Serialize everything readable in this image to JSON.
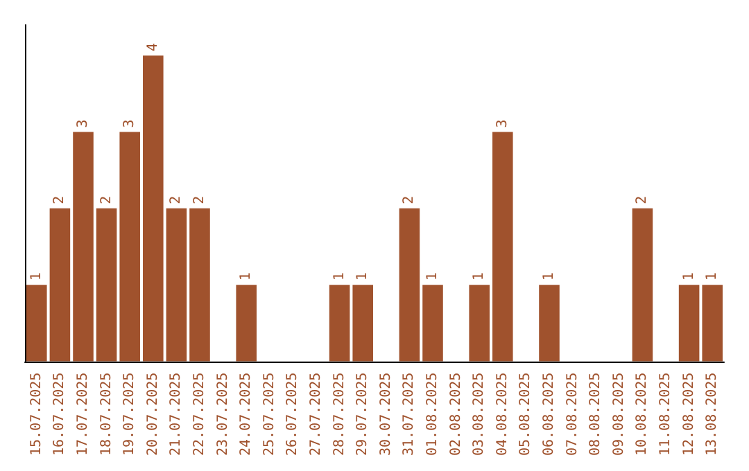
{
  "chart_data": {
    "type": "bar",
    "categories": [
      "15.07.2025",
      "16.07.2025",
      "17.07.2025",
      "18.07.2025",
      "19.07.2025",
      "20.07.2025",
      "21.07.2025",
      "22.07.2025",
      "23.07.2025",
      "24.07.2025",
      "25.07.2025",
      "26.07.2025",
      "27.07.2025",
      "28.07.2025",
      "29.07.2025",
      "30.07.2025",
      "31.07.2025",
      "01.08.2025",
      "02.08.2025",
      "03.08.2025",
      "04.08.2025",
      "05.08.2025",
      "06.08.2025",
      "07.08.2025",
      "08.08.2025",
      "09.08.2025",
      "10.08.2025",
      "11.08.2025",
      "12.08.2025",
      "13.08.2025"
    ],
    "values": [
      1,
      2,
      3,
      2,
      3,
      4,
      2,
      2,
      0,
      1,
      0,
      0,
      0,
      1,
      1,
      0,
      2,
      1,
      0,
      1,
      3,
      0,
      1,
      0,
      0,
      0,
      2,
      0,
      1,
      1
    ],
    "value_labels": [
      "1",
      "2",
      "3",
      "2",
      "3",
      "4",
      "2",
      "2",
      null,
      "1",
      null,
      null,
      null,
      "1",
      "1",
      null,
      "2",
      "1",
      null,
      "1",
      "3",
      null,
      "1",
      null,
      null,
      null,
      "2",
      null,
      "1",
      "1"
    ],
    "color": "#a0522d",
    "grid": false,
    "tick_labels": "x"
  }
}
